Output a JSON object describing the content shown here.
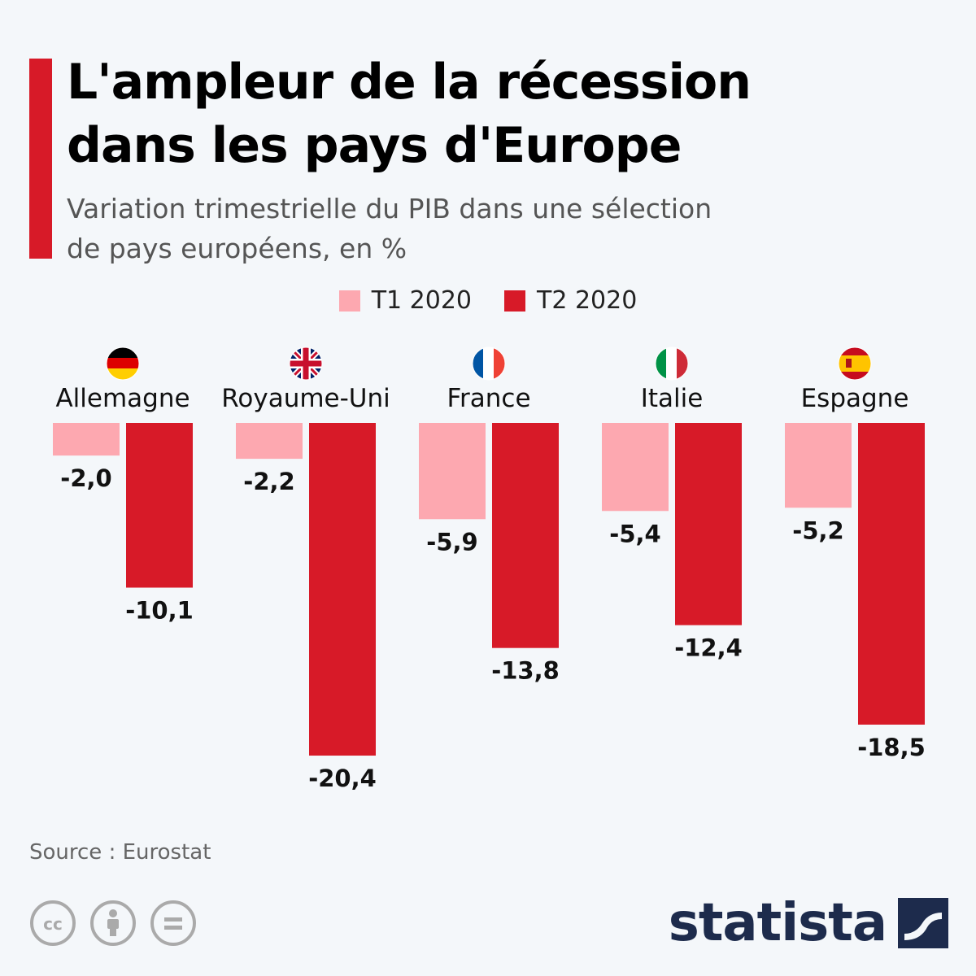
{
  "title_line1": "L'ampleur de la récession",
  "title_line2": "dans les pays d'Europe",
  "subtitle_line1": "Variation trimestrielle du PIB dans une sélection",
  "subtitle_line2": "de pays européens, en %",
  "source": "Source : Eurostat",
  "brand": "statista",
  "colors": {
    "accent": "#d71a28",
    "t1": "#fda8b0",
    "t2": "#d71a28",
    "background": "#f4f7fa",
    "brand": "#1d2b4c"
  },
  "license_icons": [
    "creative-commons-icon",
    "attribution-icon",
    "no-derivatives-icon"
  ],
  "chart_data": {
    "type": "bar",
    "categories": [
      "Allemagne",
      "Royaume-Uni",
      "France",
      "Italie",
      "Espagne"
    ],
    "flags": [
      "flag-germany-icon",
      "flag-uk-icon",
      "flag-france-icon",
      "flag-italy-icon",
      "flag-spain-icon"
    ],
    "series": [
      {
        "name": "T1 2020",
        "values": [
          -2.0,
          -2.2,
          -5.9,
          -5.4,
          -5.2
        ],
        "labels": [
          "-2,0",
          "-2,2",
          "-5,9",
          "-5,4",
          "-5,2"
        ],
        "color": "#fda8b0"
      },
      {
        "name": "T2 2020",
        "values": [
          -10.1,
          -20.4,
          -13.8,
          -12.4,
          -18.5
        ],
        "labels": [
          "-10,1",
          "-20,4",
          "-13,8",
          "-12,4",
          "-18,5"
        ],
        "color": "#d71a28"
      }
    ],
    "ylim": [
      -20.4,
      0
    ],
    "legend": "top-center",
    "grid": false
  }
}
